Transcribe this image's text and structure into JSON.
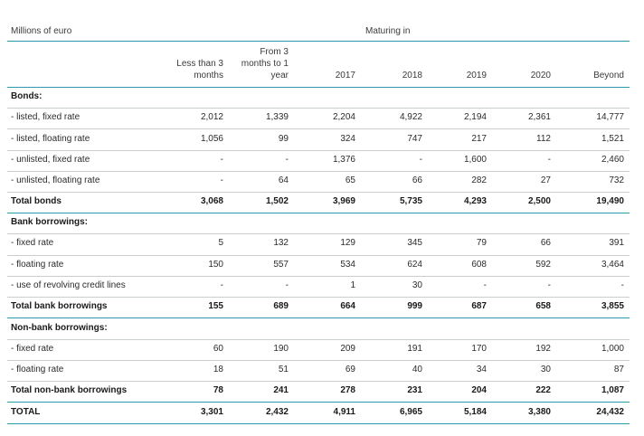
{
  "header": {
    "unit_label": "Millions of euro",
    "group_label": "Maturing in",
    "columns": [
      "Less than 3 months",
      "From 3 months to 1 year",
      "2017",
      "2018",
      "2019",
      "2020",
      "Beyond"
    ],
    "col_lines": [
      [
        "Less than 3",
        "months"
      ],
      [
        "From 3",
        "months to 1",
        "year"
      ],
      [
        "2017"
      ],
      [
        "2018"
      ],
      [
        "2019"
      ],
      [
        "2020"
      ],
      [
        "Beyond"
      ]
    ]
  },
  "rows": [
    {
      "label": "Bonds:",
      "type": "section",
      "values": []
    },
    {
      "label": "- listed, fixed rate",
      "type": "item",
      "values": [
        "2,012",
        "1,339",
        "2,204",
        "4,922",
        "2,194",
        "2,361",
        "14,777"
      ]
    },
    {
      "label": "- listed, floating rate",
      "type": "item",
      "values": [
        "1,056",
        "99",
        "324",
        "747",
        "217",
        "112",
        "1,521"
      ]
    },
    {
      "label": "- unlisted, fixed rate",
      "type": "item",
      "values": [
        "-",
        "-",
        "1,376",
        "-",
        "1,600",
        "-",
        "2,460"
      ]
    },
    {
      "label": "- unlisted, floating rate",
      "type": "item",
      "values": [
        "-",
        "64",
        "65",
        "66",
        "282",
        "27",
        "732"
      ]
    },
    {
      "label": "Total bonds",
      "type": "total",
      "values": [
        "3,068",
        "1,502",
        "3,969",
        "5,735",
        "4,293",
        "2,500",
        "19,490"
      ]
    },
    {
      "label": "Bank borrowings:",
      "type": "section",
      "values": []
    },
    {
      "label": "- fixed rate",
      "type": "item",
      "values": [
        "5",
        "132",
        "129",
        "345",
        "79",
        "66",
        "391"
      ]
    },
    {
      "label": "- floating rate",
      "type": "item",
      "values": [
        "150",
        "557",
        "534",
        "624",
        "608",
        "592",
        "3,464"
      ]
    },
    {
      "label": "- use of revolving credit lines",
      "type": "item",
      "values": [
        "-",
        "-",
        "1",
        "30",
        "-",
        "-",
        "-"
      ]
    },
    {
      "label": "Total bank borrowings",
      "type": "total",
      "values": [
        "155",
        "689",
        "664",
        "999",
        "687",
        "658",
        "3,855"
      ]
    },
    {
      "label": "Non-bank borrowings:",
      "type": "section",
      "values": []
    },
    {
      "label": "- fixed rate",
      "type": "item",
      "values": [
        "60",
        "190",
        "209",
        "191",
        "170",
        "192",
        "1,000"
      ]
    },
    {
      "label": "- floating rate",
      "type": "item",
      "values": [
        "18",
        "51",
        "69",
        "40",
        "34",
        "30",
        "87"
      ]
    },
    {
      "label": "Total non-bank borrowings",
      "type": "total",
      "values": [
        "78",
        "241",
        "278",
        "231",
        "204",
        "222",
        "1,087"
      ]
    },
    {
      "label": "TOTAL",
      "type": "total",
      "values": [
        "3,301",
        "2,432",
        "4,911",
        "6,965",
        "5,184",
        "3,380",
        "24,432"
      ]
    }
  ]
}
